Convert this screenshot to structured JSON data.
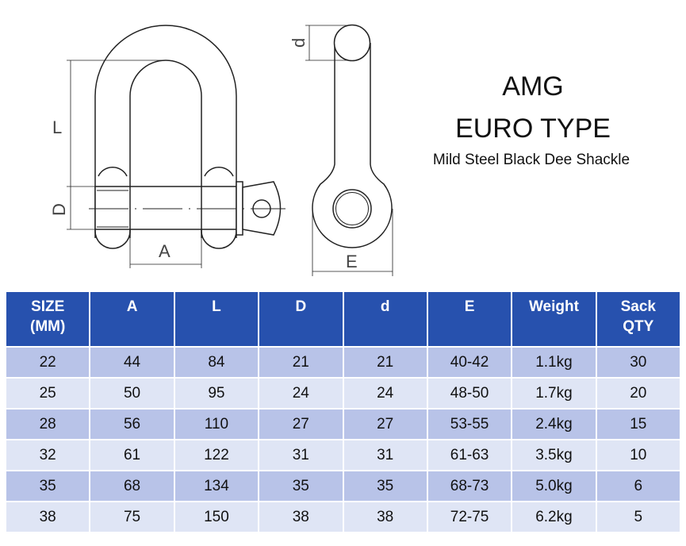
{
  "title": {
    "brand": "AMG",
    "type": "EURO TYPE",
    "subtitle": "Mild Steel Black Dee Shackle"
  },
  "drawing": {
    "labels": {
      "L": "L",
      "D": "D",
      "A": "A",
      "d": "d",
      "E": "E"
    }
  },
  "table": {
    "headers": [
      [
        "SIZE",
        "(MM)"
      ],
      [
        "A",
        ""
      ],
      [
        "L",
        ""
      ],
      [
        "D",
        ""
      ],
      [
        "d",
        ""
      ],
      [
        "E",
        ""
      ],
      [
        "Weight",
        ""
      ],
      [
        "Sack",
        "QTY"
      ]
    ],
    "rows": [
      [
        "22",
        "44",
        "84",
        "21",
        "21",
        "40-42",
        "1.1kg",
        "30"
      ],
      [
        "25",
        "50",
        "95",
        "24",
        "24",
        "48-50",
        "1.7kg",
        "20"
      ],
      [
        "28",
        "56",
        "110",
        "27",
        "27",
        "53-55",
        "2.4kg",
        "15"
      ],
      [
        "32",
        "61",
        "122",
        "31",
        "31",
        "61-63",
        "3.5kg",
        "10"
      ],
      [
        "35",
        "68",
        "134",
        "35",
        "35",
        "68-73",
        "5.0kg",
        "6"
      ],
      [
        "38",
        "75",
        "150",
        "38",
        "38",
        "72-75",
        "6.2kg",
        "5"
      ]
    ],
    "colors": {
      "header": "#2751ae",
      "row_odd": "#b8c3e8",
      "row_even": "#dfe5f5"
    }
  }
}
